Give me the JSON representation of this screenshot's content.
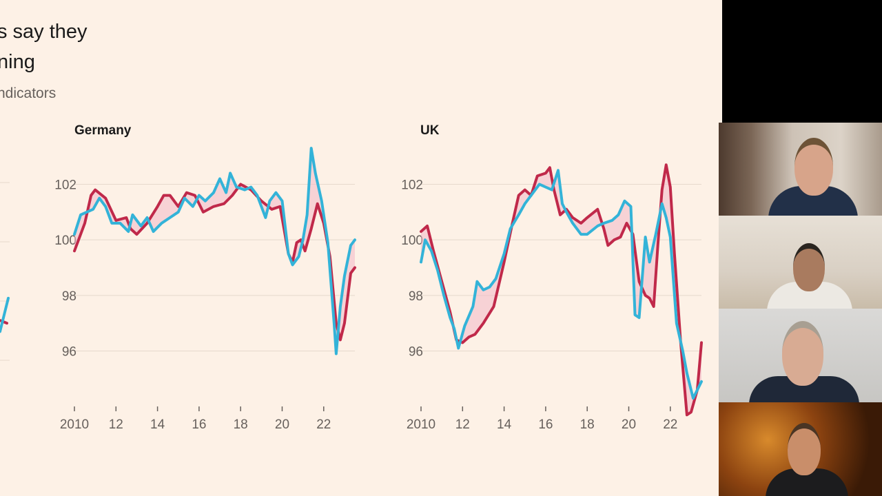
{
  "slide": {
    "title_line1": "s say they",
    "title_line2": "ning",
    "subtitle": "ndicators"
  },
  "chart_data": [
    {
      "type": "line",
      "title": "Germany",
      "x_tick_labels": [
        "2010",
        "12",
        "14",
        "16",
        "18",
        "20",
        "22"
      ],
      "xlim": [
        2010,
        2023.5
      ],
      "y_tick_labels": [
        "102",
        "100",
        "98",
        "96"
      ],
      "ylim": [
        94.5,
        103.5
      ],
      "grid": true,
      "series": [
        {
          "color": "#c0294a",
          "points": [
            [
              2010,
              99.6
            ],
            [
              2010.5,
              100.6
            ],
            [
              2010.8,
              101.6
            ],
            [
              2011.0,
              101.8
            ],
            [
              2011.5,
              101.5
            ],
            [
              2012,
              100.7
            ],
            [
              2012.5,
              100.8
            ],
            [
              2012.7,
              100.4
            ],
            [
              2013,
              100.2
            ],
            [
              2013.5,
              100.6
            ],
            [
              2014,
              101.2
            ],
            [
              2014.3,
              101.6
            ],
            [
              2014.6,
              101.6
            ],
            [
              2015,
              101.2
            ],
            [
              2015.4,
              101.7
            ],
            [
              2015.8,
              101.6
            ],
            [
              2016.2,
              101.0
            ],
            [
              2016.7,
              101.2
            ],
            [
              2017.2,
              101.3
            ],
            [
              2017.6,
              101.6
            ],
            [
              2018,
              102.0
            ],
            [
              2018.5,
              101.8
            ],
            [
              2019,
              101.4
            ],
            [
              2019.5,
              101.1
            ],
            [
              2019.9,
              101.2
            ],
            [
              2020.3,
              99.5
            ],
            [
              2020.5,
              99.2
            ],
            [
              2020.7,
              99.9
            ],
            [
              2020.9,
              100.0
            ],
            [
              2021.1,
              99.6
            ],
            [
              2021.4,
              100.4
            ],
            [
              2021.7,
              101.3
            ],
            [
              2022.0,
              100.6
            ],
            [
              2022.3,
              99.4
            ],
            [
              2022.6,
              97.0
            ],
            [
              2022.8,
              96.4
            ],
            [
              2023.0,
              97.0
            ],
            [
              2023.3,
              98.8
            ],
            [
              2023.5,
              99.0
            ]
          ]
        },
        {
          "color": "#33b3d8",
          "points": [
            [
              2010,
              100.2
            ],
            [
              2010.3,
              100.9
            ],
            [
              2010.6,
              101.0
            ],
            [
              2010.9,
              101.1
            ],
            [
              2011.2,
              101.5
            ],
            [
              2011.5,
              101.2
            ],
            [
              2011.8,
              100.6
            ],
            [
              2012.2,
              100.6
            ],
            [
              2012.6,
              100.3
            ],
            [
              2012.8,
              100.9
            ],
            [
              2013.2,
              100.5
            ],
            [
              2013.5,
              100.8
            ],
            [
              2013.8,
              100.3
            ],
            [
              2014.2,
              100.6
            ],
            [
              2014.6,
              100.8
            ],
            [
              2015,
              101.0
            ],
            [
              2015.3,
              101.5
            ],
            [
              2015.7,
              101.2
            ],
            [
              2016,
              101.6
            ],
            [
              2016.3,
              101.4
            ],
            [
              2016.7,
              101.7
            ],
            [
              2017,
              102.2
            ],
            [
              2017.3,
              101.7
            ],
            [
              2017.5,
              102.4
            ],
            [
              2017.8,
              101.9
            ],
            [
              2018.2,
              101.8
            ],
            [
              2018.5,
              101.9
            ],
            [
              2018.8,
              101.6
            ],
            [
              2019.0,
              101.2
            ],
            [
              2019.2,
              100.8
            ],
            [
              2019.4,
              101.4
            ],
            [
              2019.7,
              101.7
            ],
            [
              2020.0,
              101.4
            ],
            [
              2020.3,
              99.5
            ],
            [
              2020.5,
              99.1
            ],
            [
              2020.8,
              99.4
            ],
            [
              2021.0,
              100.0
            ],
            [
              2021.2,
              100.9
            ],
            [
              2021.4,
              103.3
            ],
            [
              2021.6,
              102.4
            ],
            [
              2021.9,
              101.4
            ],
            [
              2022.2,
              99.9
            ],
            [
              2022.5,
              97.0
            ],
            [
              2022.6,
              95.9
            ],
            [
              2022.8,
              97.6
            ],
            [
              2023.0,
              98.7
            ],
            [
              2023.3,
              99.8
            ],
            [
              2023.5,
              100.0
            ]
          ]
        }
      ]
    },
    {
      "type": "line",
      "title": "UK",
      "x_tick_labels": [
        "2010",
        "12",
        "14",
        "16",
        "18",
        "20",
        "22"
      ],
      "xlim": [
        2010,
        2023.5
      ],
      "y_tick_labels": [
        "102",
        "100",
        "98",
        "96"
      ],
      "ylim": [
        94.5,
        103.5
      ],
      "grid": true,
      "series": [
        {
          "color": "#c0294a",
          "points": [
            [
              2010,
              100.3
            ],
            [
              2010.3,
              100.5
            ],
            [
              2010.6,
              99.6
            ],
            [
              2011.0,
              98.5
            ],
            [
              2011.4,
              97.4
            ],
            [
              2011.7,
              96.4
            ],
            [
              2012.0,
              96.3
            ],
            [
              2012.3,
              96.5
            ],
            [
              2012.6,
              96.6
            ],
            [
              2013.0,
              97.0
            ],
            [
              2013.5,
              97.6
            ],
            [
              2014.0,
              99.2
            ],
            [
              2014.4,
              100.6
            ],
            [
              2014.7,
              101.6
            ],
            [
              2015.0,
              101.8
            ],
            [
              2015.3,
              101.6
            ],
            [
              2015.6,
              102.3
            ],
            [
              2016.0,
              102.4
            ],
            [
              2016.2,
              102.6
            ],
            [
              2016.4,
              101.8
            ],
            [
              2016.7,
              100.9
            ],
            [
              2017.0,
              101.1
            ],
            [
              2017.3,
              100.8
            ],
            [
              2017.7,
              100.6
            ],
            [
              2018.0,
              100.8
            ],
            [
              2018.5,
              101.1
            ],
            [
              2018.8,
              100.4
            ],
            [
              2019.0,
              99.8
            ],
            [
              2019.3,
              100.0
            ],
            [
              2019.6,
              100.1
            ],
            [
              2019.9,
              100.6
            ],
            [
              2020.2,
              100.2
            ],
            [
              2020.5,
              98.5
            ],
            [
              2020.8,
              98.0
            ],
            [
              2021.0,
              97.9
            ],
            [
              2021.2,
              97.6
            ],
            [
              2021.4,
              99.8
            ],
            [
              2021.6,
              101.8
            ],
            [
              2021.8,
              102.7
            ],
            [
              2022.0,
              101.9
            ],
            [
              2022.2,
              99.5
            ],
            [
              2022.5,
              96.3
            ],
            [
              2022.8,
              93.7
            ],
            [
              2023.0,
              93.8
            ],
            [
              2023.3,
              94.6
            ],
            [
              2023.5,
              96.3
            ]
          ]
        },
        {
          "color": "#33b3d8",
          "points": [
            [
              2010,
              99.2
            ],
            [
              2010.2,
              100.0
            ],
            [
              2010.5,
              99.6
            ],
            [
              2010.8,
              98.9
            ],
            [
              2011.1,
              98.0
            ],
            [
              2011.4,
              97.2
            ],
            [
              2011.6,
              96.8
            ],
            [
              2011.8,
              96.1
            ],
            [
              2012.1,
              96.9
            ],
            [
              2012.5,
              97.6
            ],
            [
              2012.7,
              98.5
            ],
            [
              2013.0,
              98.2
            ],
            [
              2013.3,
              98.3
            ],
            [
              2013.6,
              98.6
            ],
            [
              2014.0,
              99.5
            ],
            [
              2014.3,
              100.4
            ],
            [
              2014.7,
              100.9
            ],
            [
              2015.0,
              101.3
            ],
            [
              2015.4,
              101.7
            ],
            [
              2015.7,
              102.0
            ],
            [
              2016.0,
              101.9
            ],
            [
              2016.3,
              101.8
            ],
            [
              2016.6,
              102.5
            ],
            [
              2016.8,
              101.3
            ],
            [
              2017.0,
              101.0
            ],
            [
              2017.3,
              100.6
            ],
            [
              2017.7,
              100.2
            ],
            [
              2018.0,
              100.2
            ],
            [
              2018.5,
              100.5
            ],
            [
              2018.8,
              100.6
            ],
            [
              2019.2,
              100.7
            ],
            [
              2019.5,
              100.9
            ],
            [
              2019.8,
              101.4
            ],
            [
              2020.1,
              101.2
            ],
            [
              2020.3,
              97.3
            ],
            [
              2020.5,
              97.2
            ],
            [
              2020.8,
              100.1
            ],
            [
              2021.0,
              99.2
            ],
            [
              2021.3,
              100.2
            ],
            [
              2021.6,
              101.3
            ],
            [
              2021.8,
              100.8
            ],
            [
              2022.0,
              100.1
            ],
            [
              2022.3,
              97.0
            ],
            [
              2022.6,
              96.0
            ],
            [
              2022.8,
              95.2
            ],
            [
              2023.1,
              94.3
            ],
            [
              2023.3,
              94.6
            ],
            [
              2023.5,
              94.9
            ]
          ]
        }
      ]
    },
    {
      "type": "line",
      "title": "",
      "partial": true,
      "series": [
        {
          "color": "#c0294a",
          "points": [
            [
              0,
              97.1
            ],
            [
              0.5,
              97.0
            ]
          ]
        },
        {
          "color": "#33b3d8",
          "points": [
            [
              0,
              96.7
            ],
            [
              0.3,
              97.3
            ],
            [
              0.6,
              97.9
            ]
          ]
        }
      ]
    }
  ],
  "participants": [
    {
      "colors": {
        "bg": "#cdc2b6",
        "head": "#d7a48a",
        "hair": "#6d5337",
        "shirt": "#223048"
      }
    },
    {
      "colors": {
        "bg": "#e0d7cb",
        "head": "#a97b5f",
        "hair": "#2a2520",
        "shirt": "#ece9e3"
      }
    },
    {
      "colors": {
        "bg": "#cfcecb",
        "head": "#d8ab93",
        "hair": "#a89f92",
        "shirt": "#1f2838"
      }
    },
    {
      "colors": {
        "bg": "#7a3b10",
        "head": "#c98e6a",
        "hair": "#4a3524",
        "shirt": "#1c1c1e"
      }
    }
  ]
}
